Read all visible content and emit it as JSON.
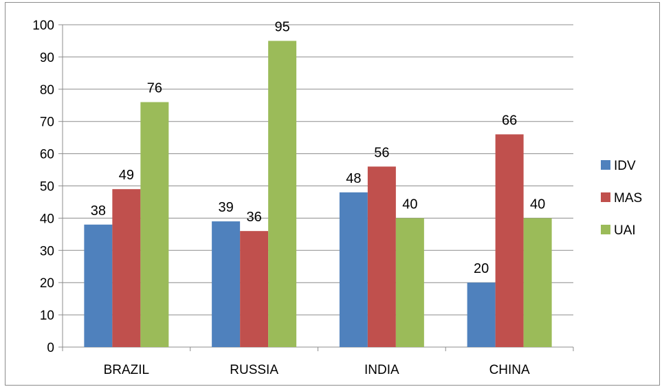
{
  "chart_data": {
    "type": "bar",
    "title": "",
    "xlabel": "",
    "ylabel": "",
    "categories": [
      "BRAZIL",
      "RUSSIA",
      "INDIA",
      "CHINA"
    ],
    "series": [
      {
        "name": "IDV",
        "values": [
          38,
          39,
          48,
          20
        ],
        "color": "#4f81bd"
      },
      {
        "name": "MAS",
        "values": [
          49,
          36,
          56,
          66
        ],
        "color": "#c0504d"
      },
      {
        "name": "UAI",
        "values": [
          76,
          95,
          40,
          40
        ],
        "color": "#9bbb59"
      }
    ],
    "ylim": [
      0,
      100
    ],
    "yticks": [
      "0",
      "10",
      "20",
      "30",
      "40",
      "50",
      "60",
      "70",
      "80",
      "90",
      "100"
    ],
    "grid": true,
    "legend": "right",
    "data_labels": true
  }
}
